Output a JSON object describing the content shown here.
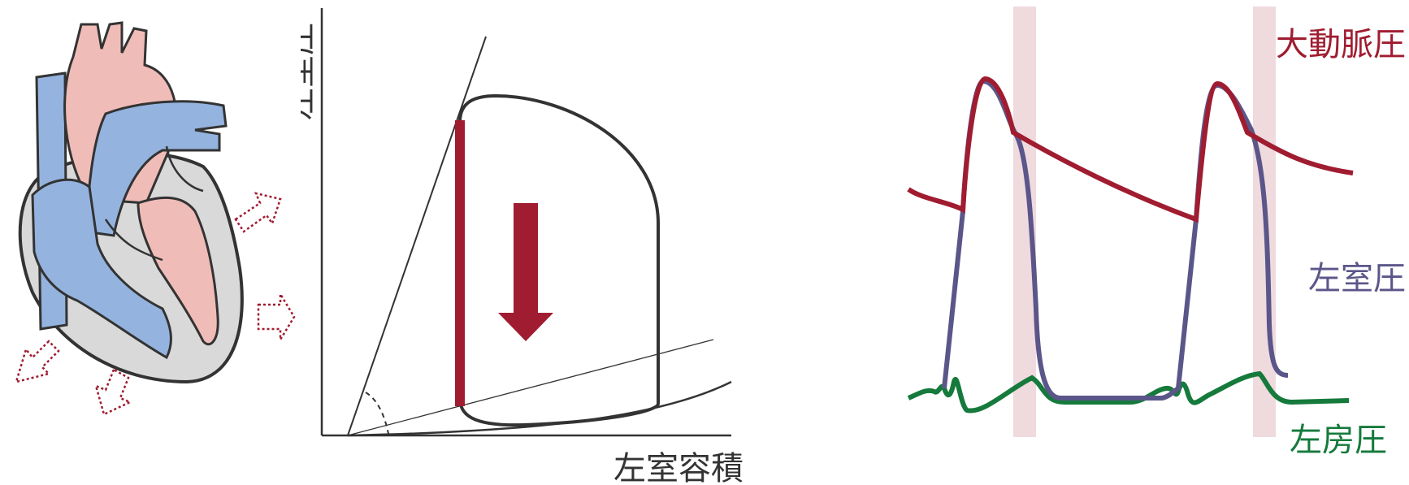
{
  "pv_loop": {
    "y_axis_label": "左室圧",
    "x_axis_label": "左室容積"
  },
  "waveforms": {
    "aortic_label": "大動脈圧",
    "lv_label": "左室圧",
    "la_label": "左房圧"
  },
  "colors": {
    "aortic": "#a01c30",
    "lv": "#5b5689",
    "la": "#157a3c",
    "highlight_band": "#ecd3d8",
    "arrow": "#a01c30",
    "heart_red": "#f0bcb8",
    "heart_blue": "#94b3df",
    "heart_gray": "#d9d9d9"
  }
}
